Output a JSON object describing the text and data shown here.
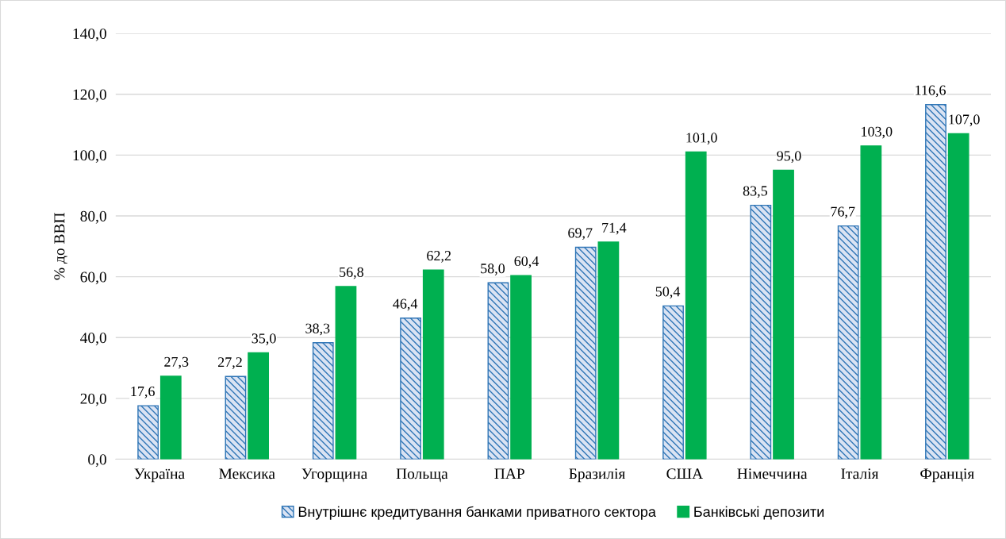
{
  "chart_data": {
    "type": "bar",
    "ylabel": "% до ВВП",
    "categories": [
      "Україна",
      "Мексика",
      "Угорщина",
      "Польща",
      "ПАР",
      "Бразилія",
      "США",
      "Німеччина",
      "Італія",
      "Франція"
    ],
    "series": [
      {
        "name": "Внутрішнє кредитування банками приватного сектора",
        "color": "#2e75b6",
        "values": [
          17.6,
          27.2,
          38.3,
          46.4,
          58.0,
          69.7,
          50.4,
          83.5,
          76.7,
          116.6
        ],
        "value_labels": [
          "17,6",
          "27,2",
          "38,3",
          "46,4",
          "58,0",
          "69,7",
          "50,4",
          "83,5",
          "76,7",
          "116,6"
        ]
      },
      {
        "name": "Банківські депозити",
        "color": "#00b050",
        "values": [
          27.3,
          35.0,
          56.8,
          62.2,
          60.4,
          71.4,
          101.0,
          95.0,
          103.0,
          107.0
        ],
        "value_labels": [
          "27,3",
          "35,0",
          "56,8",
          "62,2",
          "60,4",
          "71,4",
          "101,0",
          "95,0",
          "103,0",
          "107,0"
        ]
      }
    ],
    "ylim": [
      0,
      140
    ],
    "yticks": [
      {
        "value": 0,
        "label": "0,0"
      },
      {
        "value": 20,
        "label": "20,0"
      },
      {
        "value": 40,
        "label": "40,0"
      },
      {
        "value": 60,
        "label": "60,0"
      },
      {
        "value": 80,
        "label": "80,0"
      },
      {
        "value": 100,
        "label": "100,0"
      },
      {
        "value": 120,
        "label": "120,0"
      },
      {
        "value": 140,
        "label": "140,0"
      }
    ],
    "grid": "y",
    "legend": "bottom"
  }
}
